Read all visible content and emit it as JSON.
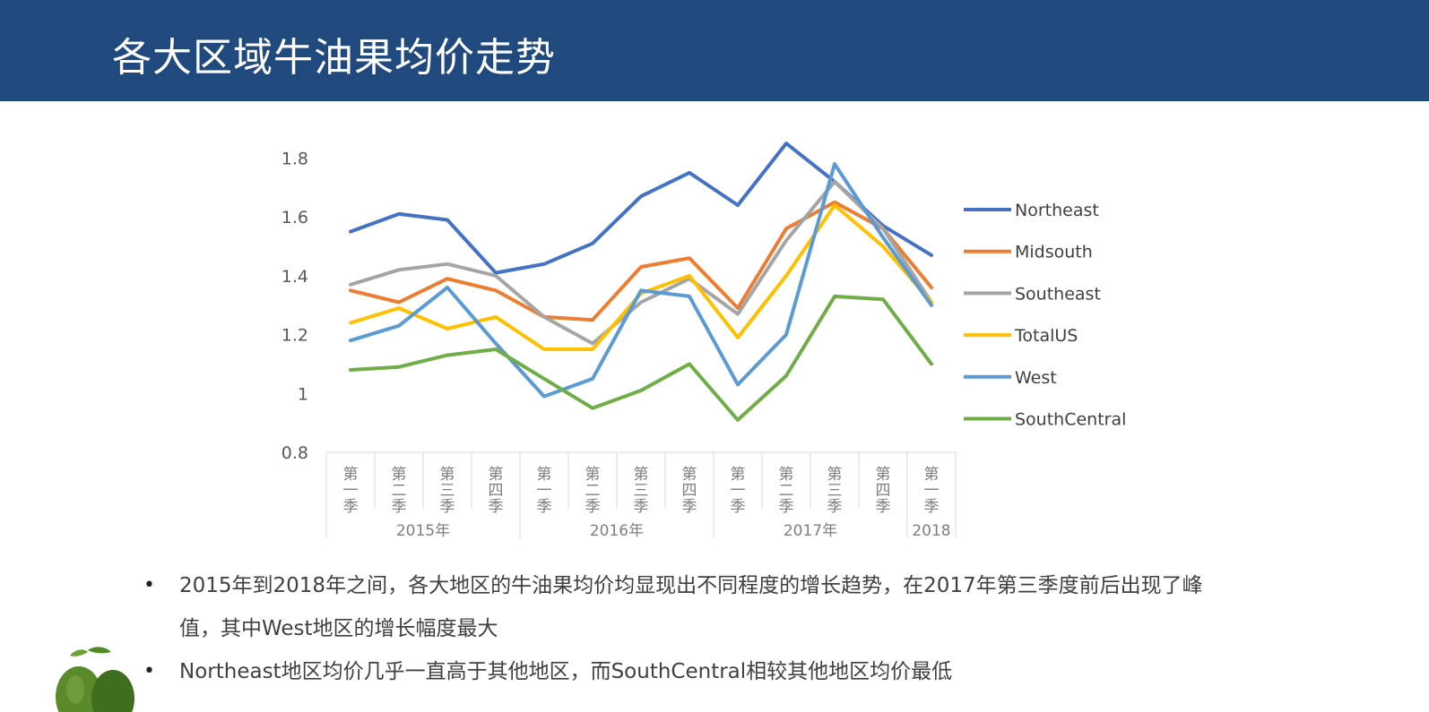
{
  "header": {
    "title": "各大区域牛油果均价走势"
  },
  "colors": {
    "header_bg": "#204a7e",
    "Northeast": "#4472c4",
    "Midsouth": "#ed7d31",
    "Southeast": "#a5a5a5",
    "TotalUS": "#ffc000",
    "West": "#5b9bd5",
    "SouthCentral": "#70ad47"
  },
  "chart_data": {
    "type": "line",
    "title": "",
    "xlabel": "",
    "ylabel": "",
    "ylim": [
      0.8,
      1.85
    ],
    "yticks": [
      "0.8",
      "1",
      "1.2",
      "1.4",
      "1.6",
      "1.8"
    ],
    "categories": [
      [
        "第",
        "一",
        "季"
      ],
      [
        "第",
        "二",
        "季"
      ],
      [
        "第",
        "三",
        "季"
      ],
      [
        "第",
        "四",
        "季"
      ],
      [
        "第",
        "一",
        "季"
      ],
      [
        "第",
        "二",
        "季"
      ],
      [
        "第",
        "三",
        "季"
      ],
      [
        "第",
        "四",
        "季"
      ],
      [
        "第",
        "一",
        "季"
      ],
      [
        "第",
        "二",
        "季"
      ],
      [
        "第",
        "三",
        "季"
      ],
      [
        "第",
        "四",
        "季"
      ],
      [
        "第",
        "一",
        "季"
      ]
    ],
    "groups": [
      {
        "label": "2015年",
        "count": 4
      },
      {
        "label": "2016年",
        "count": 4
      },
      {
        "label": "2017年",
        "count": 4
      },
      {
        "label": "2018",
        "count": 1
      }
    ],
    "legend_position": "right",
    "series": [
      {
        "name": "Northeast",
        "values": [
          1.55,
          1.61,
          1.59,
          1.41,
          1.44,
          1.51,
          1.67,
          1.75,
          1.64,
          1.85,
          1.72,
          1.57,
          1.47
        ]
      },
      {
        "name": "Midsouth",
        "values": [
          1.35,
          1.31,
          1.39,
          1.35,
          1.26,
          1.25,
          1.43,
          1.46,
          1.29,
          1.56,
          1.65,
          1.56,
          1.36
        ]
      },
      {
        "name": "Southeast",
        "values": [
          1.37,
          1.42,
          1.44,
          1.4,
          1.26,
          1.17,
          1.31,
          1.39,
          1.27,
          1.52,
          1.72,
          1.56,
          1.31
        ]
      },
      {
        "name": "TotalUS",
        "values": [
          1.24,
          1.29,
          1.22,
          1.26,
          1.15,
          1.15,
          1.34,
          1.4,
          1.19,
          1.4,
          1.64,
          1.5,
          1.31
        ]
      },
      {
        "name": "West",
        "values": [
          1.18,
          1.23,
          1.36,
          1.17,
          0.99,
          1.05,
          1.35,
          1.33,
          1.03,
          1.2,
          1.78,
          1.53,
          1.3
        ]
      },
      {
        "name": "SouthCentral",
        "values": [
          1.08,
          1.09,
          1.13,
          1.15,
          1.05,
          0.95,
          1.01,
          1.1,
          0.91,
          1.06,
          1.33,
          1.32,
          1.1
        ]
      }
    ]
  },
  "bullets": [
    {
      "line1": "2015年到2018年之间，各大地区的牛油果均价均显现出不同程度的增长趋势，在2017年第三季度前后出现了峰",
      "line2": "值，其中West地区的增长幅度最大"
    },
    {
      "line1": "Northeast地区均价几乎一直高于其他地区，而SouthCentral相较其他地区均价最低"
    }
  ],
  "bullet_symbol": "•"
}
